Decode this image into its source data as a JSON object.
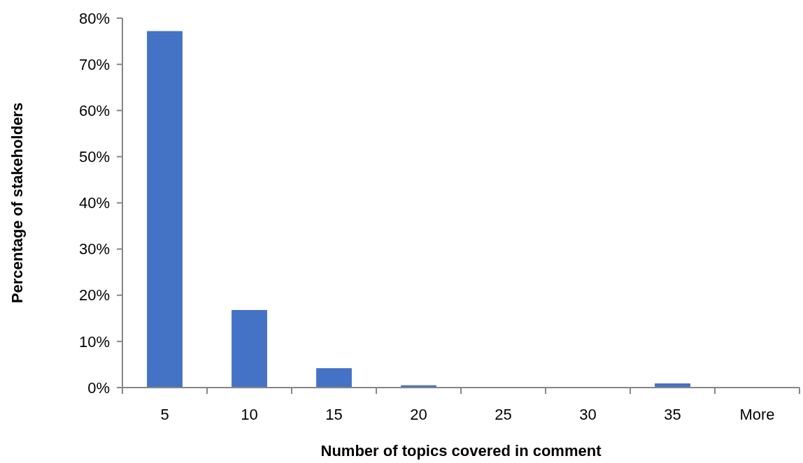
{
  "chart_data": {
    "type": "bar",
    "xlabel": "Number of topics covered in comment",
    "ylabel": "Percentage of stakeholders",
    "categories": [
      "5",
      "10",
      "15",
      "20",
      "25",
      "30",
      "35",
      "More"
    ],
    "values": [
      77.2,
      16.8,
      4.2,
      0.5,
      0,
      0,
      0.9,
      0
    ],
    "color": "#4472c4",
    "ylim": [
      0,
      80
    ],
    "yticks": [
      {
        "value": 0,
        "label": "0%"
      },
      {
        "value": 10,
        "label": "10%"
      },
      {
        "value": 20,
        "label": "20%"
      },
      {
        "value": 30,
        "label": "30%"
      },
      {
        "value": 40,
        "label": "40%"
      },
      {
        "value": 50,
        "label": "50%"
      },
      {
        "value": 60,
        "label": "60%"
      },
      {
        "value": 70,
        "label": "70%"
      },
      {
        "value": 80,
        "label": "80%"
      }
    ],
    "grid": false
  }
}
